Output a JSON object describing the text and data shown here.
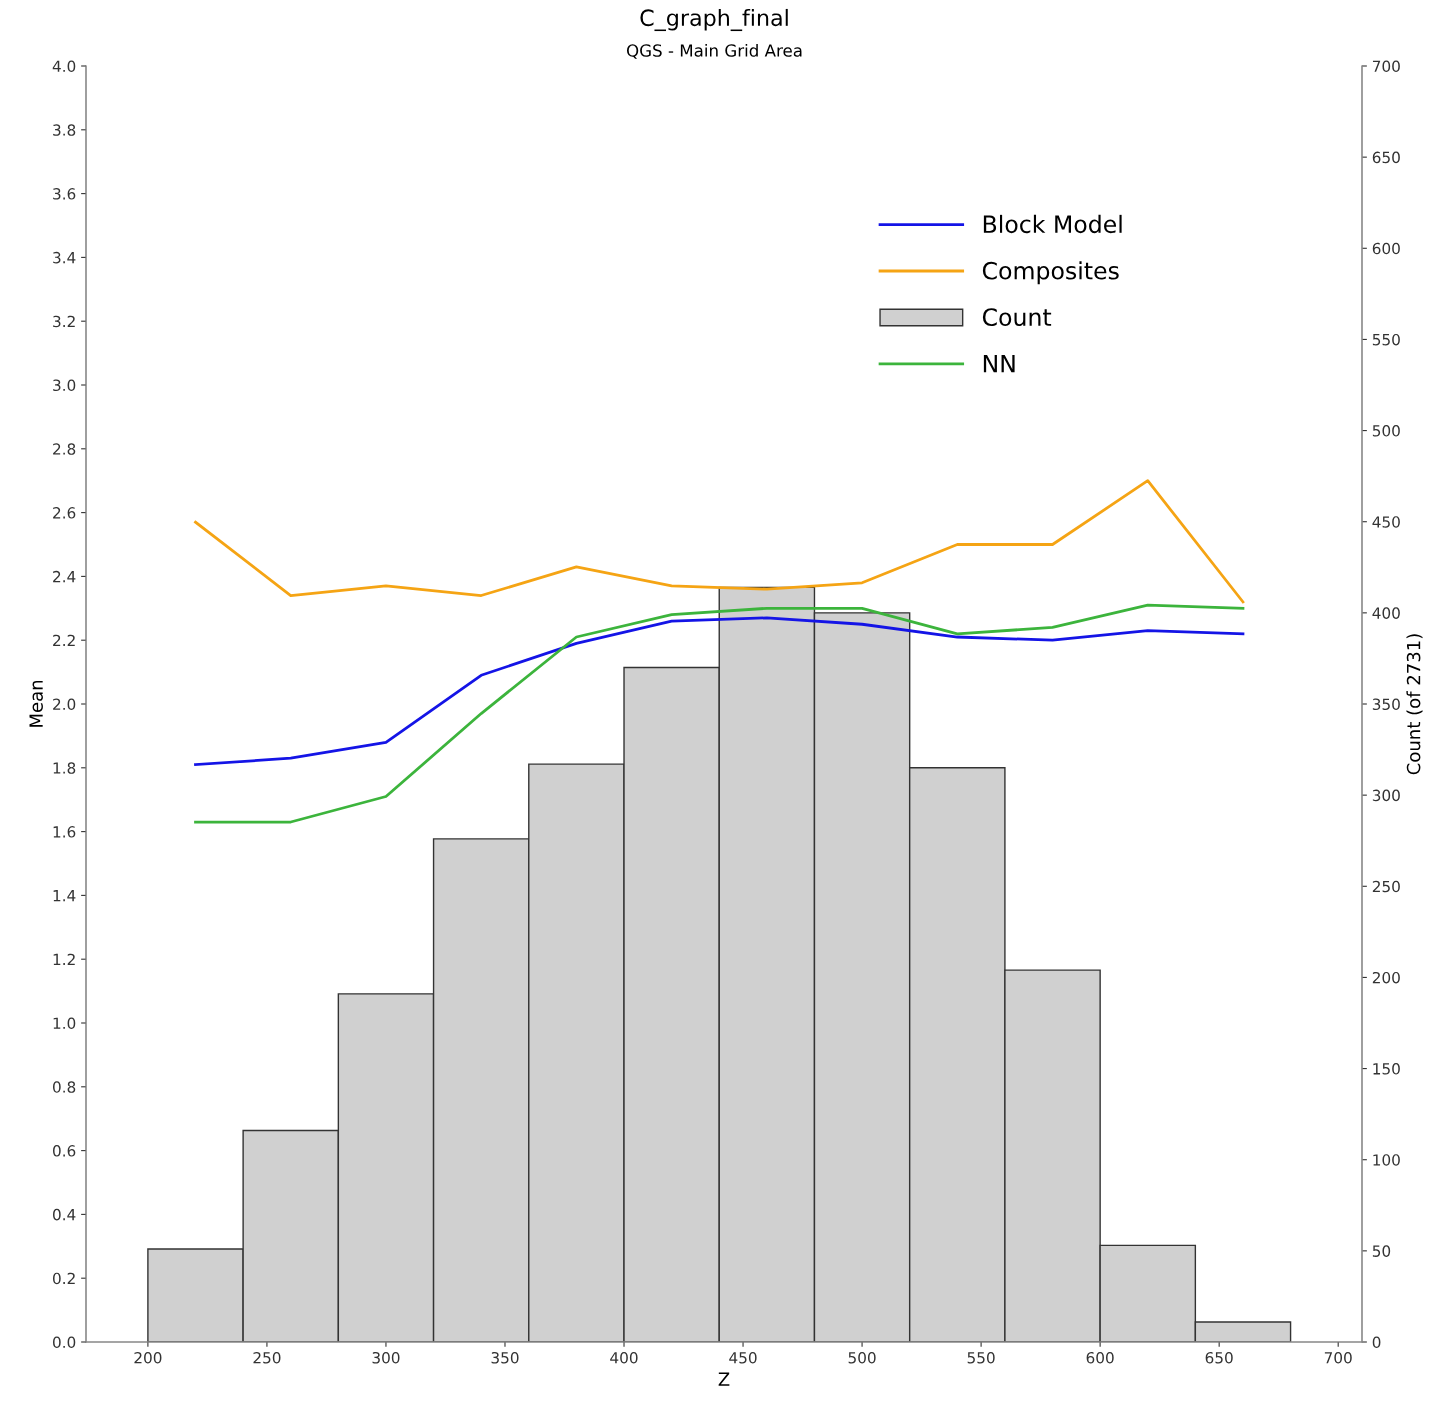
{
  "chart_data": {
    "type": "histogram",
    "title": "C_graph_final",
    "subtitle": "QGS - Main Grid Area",
    "xlabel": "Z",
    "ylabel": "Mean",
    "y2label": "Count (of 2731)",
    "bins": [
      200,
      240,
      280,
      320,
      360,
      400,
      440,
      480,
      520,
      560,
      600,
      640,
      680
    ],
    "series": [
      {
        "name": "Block Model",
        "type": "line",
        "color": "#1414e6",
        "x": [
          220,
          260,
          300,
          340,
          380,
          420,
          460,
          500,
          540,
          580,
          620,
          660
        ],
        "values": [
          1.81,
          1.83,
          1.88,
          2.09,
          2.19,
          2.26,
          2.27,
          2.25,
          2.21,
          2.2,
          2.23,
          2.22
        ]
      },
      {
        "name": "Composites",
        "type": "line",
        "color": "#f5a414",
        "x": [
          220,
          260,
          300,
          340,
          380,
          420,
          460,
          500,
          540,
          580,
          620,
          660
        ],
        "values": [
          2.57,
          2.34,
          2.37,
          2.34,
          2.43,
          2.37,
          2.36,
          2.38,
          2.5,
          2.5,
          2.7,
          2.32
        ]
      },
      {
        "name": "Count",
        "axis": "y2",
        "color": "#d0d0d0",
        "values": [
          51,
          116,
          191,
          276,
          317,
          370,
          414,
          400,
          315,
          204,
          53,
          11
        ]
      },
      {
        "name": "NN",
        "type": "line",
        "color": "#3cb43c",
        "x": [
          220,
          260,
          300,
          340,
          380,
          420,
          460,
          500,
          540,
          580,
          620,
          660
        ],
        "values": [
          1.63,
          1.63,
          1.71,
          1.97,
          2.21,
          2.28,
          2.3,
          2.3,
          2.22,
          2.24,
          2.31,
          2.3
        ]
      }
    ],
    "xlim": [
      174,
      710
    ],
    "xticks": [
      200,
      250,
      300,
      350,
      400,
      450,
      500,
      550,
      600,
      650,
      700
    ],
    "ylim": [
      0,
      4.0
    ],
    "yticks": [
      {
        "value": 0,
        "label": "0.0"
      },
      {
        "value": 0.2,
        "label": "0.2"
      },
      {
        "value": 0.4,
        "label": "0.4"
      },
      {
        "value": 0.6,
        "label": "0.6"
      },
      {
        "value": 0.8,
        "label": "0.8"
      },
      {
        "value": 1.0,
        "label": "1.0"
      },
      {
        "value": 1.2,
        "label": "1.2"
      },
      {
        "value": 1.4,
        "label": "1.4"
      },
      {
        "value": 1.6,
        "label": "1.6"
      },
      {
        "value": 1.8,
        "label": "1.8"
      },
      {
        "value": 2.0,
        "label": "2.0"
      },
      {
        "value": 2.2,
        "label": "2.2"
      },
      {
        "value": 2.4,
        "label": "2.4"
      },
      {
        "value": 2.6,
        "label": "2.6"
      },
      {
        "value": 2.8,
        "label": "2.8"
      },
      {
        "value": 3.0,
        "label": "3.0"
      },
      {
        "value": 3.2,
        "label": "3.2"
      },
      {
        "value": 3.4,
        "label": "3.4"
      },
      {
        "value": 3.6,
        "label": "3.6"
      },
      {
        "value": 3.8,
        "label": "3.8"
      },
      {
        "value": 4.0,
        "label": "4.0"
      }
    ],
    "y2lim": [
      0,
      700
    ],
    "y2ticks": [
      0,
      50,
      100,
      150,
      200,
      250,
      300,
      350,
      400,
      450,
      500,
      550,
      600,
      650,
      700
    ],
    "legend": "top right",
    "grid": false
  }
}
